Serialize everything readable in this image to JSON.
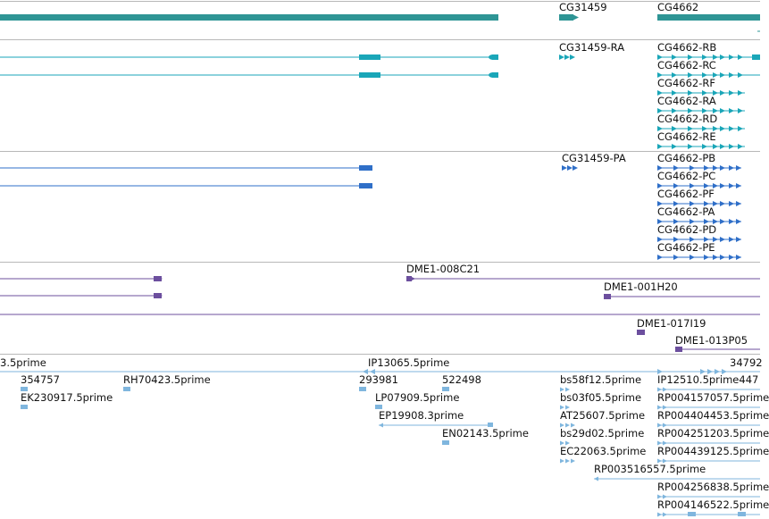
{
  "colors": {
    "gene": "#2e9595",
    "rna": "#1aa6b8",
    "protein": "#2f6fc8",
    "clone": "#6c4f9e",
    "est": "#7fb6de",
    "divider": "#b8b8b8",
    "text": "#111111"
  },
  "tracks": {
    "genes": {
      "labels": [
        "CG31459",
        "CG4662"
      ]
    },
    "transcripts": {
      "labels": [
        "CG31459-RA",
        "CG4662-RB",
        "CG4662-RC",
        "CG4662-RF",
        "CG4662-RA",
        "CG4662-RD",
        "CG4662-RE"
      ]
    },
    "proteins": {
      "labels": [
        "CG31459-PA",
        "CG4662-PB",
        "CG4662-PC",
        "CG4662-PF",
        "CG4662-PA",
        "CG4662-PD",
        "CG4662-PE"
      ]
    },
    "clones": {
      "labels": [
        "DME1-008C21",
        "DME1-001H20",
        "DME1-017I19",
        "DME1-013P05"
      ]
    },
    "ests": {
      "labels": [
        "3.5prime",
        "IP13065.5prime",
        "34792",
        "354757",
        "RH70423.5prime",
        "293981",
        "522498",
        "bs58f12.5prime",
        "IP12510.5prime447",
        "EK230917.5prime",
        "LP07909.5prime",
        "bs03f05.5prime",
        "RP004157057.5prime",
        "EP19908.3prime",
        "AT25607.5prime",
        "RP004404453.5prime",
        "EN02143.5prime",
        "bs29d02.5prime",
        "RP004251203.5prime",
        "EC22063.5prime",
        "RP004439125.5prime",
        "RP003516557.5prime",
        "RP004256838.5prime",
        "RP004146522.5prime"
      ]
    }
  }
}
